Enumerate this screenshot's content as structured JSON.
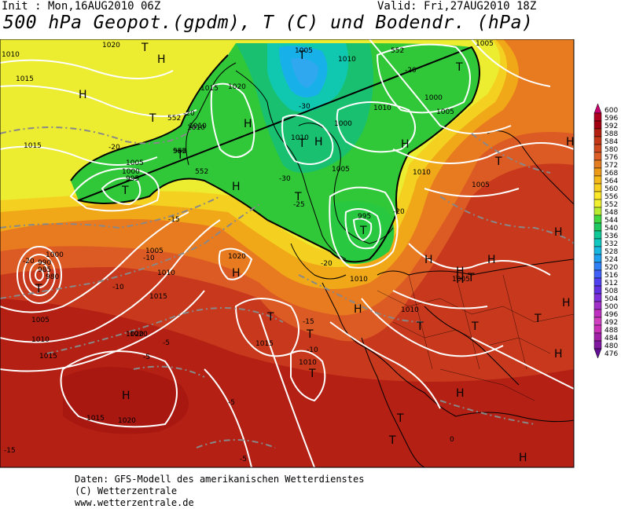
{
  "header": {
    "init": "Init : Mon,16AUG2010 06Z",
    "valid": "Valid: Fri,27AUG2010 18Z",
    "title": "500 hPa Geopot.(gpdm), T (C) und Bodendr. (hPa)"
  },
  "footer": {
    "line1": "Daten: GFS-Modell des amerikanischen Wetterdienstes",
    "line2": "(C) Wetterzentrale",
    "line3": "www.wetterzentrale.de"
  },
  "scale": {
    "values": [
      "600",
      "596",
      "592",
      "588",
      "584",
      "580",
      "576",
      "572",
      "568",
      "564",
      "560",
      "556",
      "552",
      "548",
      "544",
      "540",
      "536",
      "532",
      "528",
      "524",
      "520",
      "516",
      "512",
      "508",
      "504",
      "500",
      "496",
      "492",
      "488",
      "484",
      "480",
      "476"
    ],
    "colors": [
      "#c8006e",
      "#b00020",
      "#a00010",
      "#b42010",
      "#c43818",
      "#d04a20",
      "#dc6028",
      "#e47c20",
      "#ec9a18",
      "#f4b818",
      "#f8d020",
      "#fce828",
      "#f0f030",
      "#b8ec30",
      "#40d840",
      "#20c860",
      "#10c898",
      "#10c8c0",
      "#18b8e0",
      "#20a0f0",
      "#3080f8",
      "#4060f8",
      "#5040f0",
      "#6030e0",
      "#8030d8",
      "#a030c8",
      "#c030c0",
      "#d040c0",
      "#c830b8",
      "#a020a8",
      "#8018a0",
      "#601090"
    ]
  },
  "map": {
    "highs": [
      "H",
      "H",
      "H",
      "H",
      "H",
      "H",
      "H",
      "H",
      "H",
      "H",
      "H",
      "H",
      "H",
      "H",
      "H",
      "H",
      "H",
      "H",
      "H"
    ],
    "lows": [
      "T",
      "T",
      "T",
      "T",
      "T",
      "T",
      "T",
      "T",
      "T",
      "T",
      "T",
      "T",
      "T",
      "T",
      "T",
      "T",
      "T",
      "T",
      "T",
      "T"
    ],
    "pressure_labels": [
      "1010",
      "1015",
      "1015",
      "1020",
      "1020",
      "1010",
      "1005",
      "1000",
      "995",
      "985",
      "1015",
      "1010",
      "1005",
      "1000",
      "995",
      "1005",
      "1010",
      "1010",
      "1005",
      "1000",
      "1010",
      "1005",
      "1005",
      "1010",
      "1020",
      "1015",
      "1010",
      "1020",
      "1005",
      "1010",
      "1015",
      "1010",
      "1005",
      "1010",
      "1015",
      "1000",
      "990",
      "985",
      "980",
      "1005",
      "1010",
      "1015",
      "1020",
      "1020"
    ],
    "temp_labels": [
      "-20",
      "-20",
      "-30",
      "-30",
      "-25",
      "-20",
      "-20",
      "-20",
      "-15",
      "-10",
      "-15",
      "-10",
      "-20",
      "-5",
      "-5",
      "-5",
      "-5",
      "-10",
      "0",
      "-15"
    ],
    "contour_labels": [
      "552",
      "552",
      "552",
      "552"
    ]
  }
}
